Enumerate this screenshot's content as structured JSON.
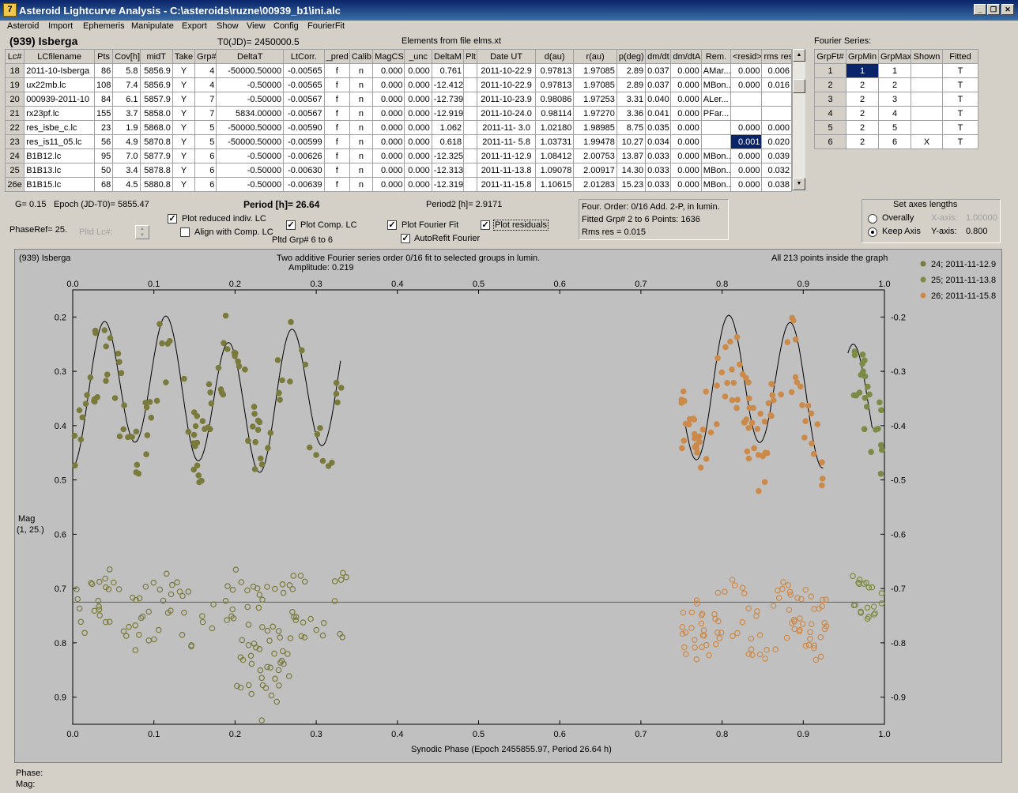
{
  "window": {
    "title": "Asteroid Lightcurve Analysis - C:\\asteroids\\ruzne\\00939_b1\\ini.alc"
  },
  "menu": [
    "Asteroid",
    "Import",
    "Ephemeris",
    "Manipulate",
    "Export",
    "Show",
    "View",
    "Config",
    "FourierFit"
  ],
  "header": {
    "asteroid": "(939) Isberga",
    "t0": "T0(JD)= 2450000.5",
    "elements": "Elements from file elms.xt",
    "fourier_title": "Fourier Series:"
  },
  "lc_table": {
    "columns": [
      "Lc#",
      "LCfilename",
      "Pts",
      "Cov[h]",
      "midT",
      "Take",
      "Grp#",
      "DeltaT",
      "LtCorr.",
      "_pred",
      "Calib.",
      "MagCS",
      "_unc",
      "DeltaM",
      "Plt",
      "Date UT",
      "d(au)",
      "r(au)",
      "p(deg)",
      "dm/dt",
      "dm/dtA",
      "Rem.",
      "<resid>",
      "rms res"
    ],
    "rows": [
      [
        "18",
        "2011-10-Isberga",
        "86",
        "5.8",
        "5856.9",
        "Y",
        "4",
        "-50000.50000",
        "-0.00565",
        "f",
        "n",
        "0.000",
        "0.000",
        "0.761",
        "",
        "2011-10-22.9",
        "0.97813",
        "1.97085",
        "2.89",
        "0.037",
        "0.000",
        "AMar...",
        "0.000",
        "0.006"
      ],
      [
        "19",
        "ux22mb.lc",
        "108",
        "7.4",
        "5856.9",
        "Y",
        "4",
        "-0.50000",
        "-0.00565",
        "f",
        "n",
        "0.000",
        "0.000",
        "-12.412",
        "",
        "2011-10-22.9",
        "0.97813",
        "1.97085",
        "2.89",
        "0.037",
        "0.000",
        "MBon...",
        "0.000",
        "0.016"
      ],
      [
        "20",
        "000939-2011-10",
        "84",
        "6.1",
        "5857.9",
        "Y",
        "7",
        "-0.50000",
        "-0.00567",
        "f",
        "n",
        "0.000",
        "0.000",
        "-12.739",
        "",
        "2011-10-23.9",
        "0.98086",
        "1.97253",
        "3.31",
        "0.040",
        "0.000",
        "ALer...",
        "",
        ""
      ],
      [
        "21",
        "rx23pf.lc",
        "155",
        "3.7",
        "5858.0",
        "Y",
        "7",
        "5834.00000",
        "-0.00567",
        "f",
        "n",
        "0.000",
        "0.000",
        "-12.919",
        "",
        "2011-10-24.0",
        "0.98114",
        "1.97270",
        "3.36",
        "0.041",
        "0.000",
        "PFar...",
        "",
        ""
      ],
      [
        "22",
        "res_isbe_c.lc",
        "23",
        "1.9",
        "5868.0",
        "Y",
        "5",
        "-50000.50000",
        "-0.00590",
        "f",
        "n",
        "0.000",
        "0.000",
        "1.062",
        "",
        "2011-11- 3.0",
        "1.02180",
        "1.98985",
        "8.75",
        "0.035",
        "0.000",
        "",
        "0.000",
        "0.000"
      ],
      [
        "23",
        "res_is11_05.lc",
        "56",
        "4.9",
        "5870.8",
        "Y",
        "5",
        "-50000.50000",
        "-0.00599",
        "f",
        "n",
        "0.000",
        "0.000",
        "0.618",
        "",
        "2011-11- 5.8",
        "1.03731",
        "1.99478",
        "10.27",
        "0.034",
        "0.000",
        "",
        "0.001",
        "0.020"
      ],
      [
        "24",
        "B1B12.lc",
        "95",
        "7.0",
        "5877.9",
        "Y",
        "6",
        "-0.50000",
        "-0.00626",
        "f",
        "n",
        "0.000",
        "0.000",
        "-12.325",
        "",
        "2011-11-12.9",
        "1.08412",
        "2.00753",
        "13.87",
        "0.033",
        "0.000",
        "MBon...",
        "0.000",
        "0.039"
      ],
      [
        "25",
        "B1B13.lc",
        "50",
        "3.4",
        "5878.8",
        "Y",
        "6",
        "-0.50000",
        "-0.00630",
        "f",
        "n",
        "0.000",
        "0.000",
        "-12.313",
        "",
        "2011-11-13.8",
        "1.09078",
        "2.00917",
        "14.30",
        "0.033",
        "0.000",
        "MBon...",
        "0.000",
        "0.032"
      ],
      [
        "26e",
        "B1B15.lc",
        "68",
        "4.5",
        "5880.8",
        "Y",
        "6",
        "-0.50000",
        "-0.00639",
        "f",
        "n",
        "0.000",
        "0.000",
        "-12.319",
        "",
        "2011-11-15.8",
        "1.10615",
        "2.01283",
        "15.23",
        "0.033",
        "0.000",
        "MBon...",
        "0.000",
        "0.038"
      ]
    ]
  },
  "fourier_table": {
    "columns": [
      "GrpFt#",
      "GrpMin",
      "GrpMax",
      "Shown",
      "Fitted"
    ],
    "rows": [
      [
        "1",
        "1",
        "1",
        "",
        "T"
      ],
      [
        "2",
        "2",
        "2",
        "",
        "T"
      ],
      [
        "3",
        "2",
        "3",
        "",
        "T"
      ],
      [
        "4",
        "2",
        "4",
        "",
        "T"
      ],
      [
        "5",
        "2",
        "5",
        "",
        "T"
      ],
      [
        "6",
        "2",
        "6",
        "X",
        "T"
      ]
    ]
  },
  "controls": {
    "g": "G= 0.15",
    "epoch": "Epoch (JD-T0)= 5855.47",
    "period": "Period [h]= 26.64",
    "period2": "Period2 [h]= 2.9171",
    "phaseref": "PhaseRef= 25.",
    "pltd_lc": "Pltd Lc#:",
    "cb_reduced": "Plot reduced indiv. LC",
    "cb_align": "Align with Comp. LC",
    "cb_comp": "Plot Comp. LC",
    "pltd_grp": "Pltd Grp#  6  to   6",
    "cb_fourier": "Plot Fourier Fit",
    "cb_autorefit": "AutoRefit Fourier",
    "cb_resid": "Plot residuals",
    "info1": "Four. Order:  0/16    Add. 2-P, in lumin.",
    "info2": "Fitted Grp# 2 to 6     Points: 1636",
    "info3": "Rms res      = 0.015",
    "axes_title": "Set axes lengths",
    "overally": "Overally",
    "keep_axis": "Keep Axis",
    "xaxis_lbl": "X-axis:",
    "xaxis_val": "1.00000",
    "yaxis_lbl": "Y-axis:",
    "yaxis_val": "0.800"
  },
  "plot": {
    "name": "(939) Isberga",
    "subtitle": "Two additive Fourier series order 0/16 fit to selected groups in lumin.",
    "amplitude": "Amplitude: 0.219",
    "inside": "All 213 points inside the graph",
    "ylabel1": "Mag",
    "ylabel2": "(1, 25.)",
    "xlabel": "Synodic Phase (Epoch 2455855.97, Period 26.64 h)",
    "legend": [
      {
        "label": "24; 2011-11-12.9",
        "color": "#7a7a3c"
      },
      {
        "label": "25; 2011-11-13.8",
        "color": "#7b8a45"
      },
      {
        "label": "26; 2011-11-15.8",
        "color": "#cc8a4a"
      }
    ],
    "x_ticks": [
      "0.0",
      "0.1",
      "0.2",
      "0.3",
      "0.4",
      "0.5",
      "0.6",
      "0.7",
      "0.8",
      "0.9",
      "1.0"
    ],
    "y_ticks": [
      "0.2",
      "0.3",
      "0.4",
      "0.5",
      "0.6",
      "0.7",
      "0.8",
      "0.9"
    ],
    "xlim": [
      0,
      1
    ],
    "ylim": [
      0.15,
      0.95
    ],
    "residual_zero": 0.725
  },
  "status": {
    "phase": "Phase:",
    "mag": "Mag:"
  }
}
